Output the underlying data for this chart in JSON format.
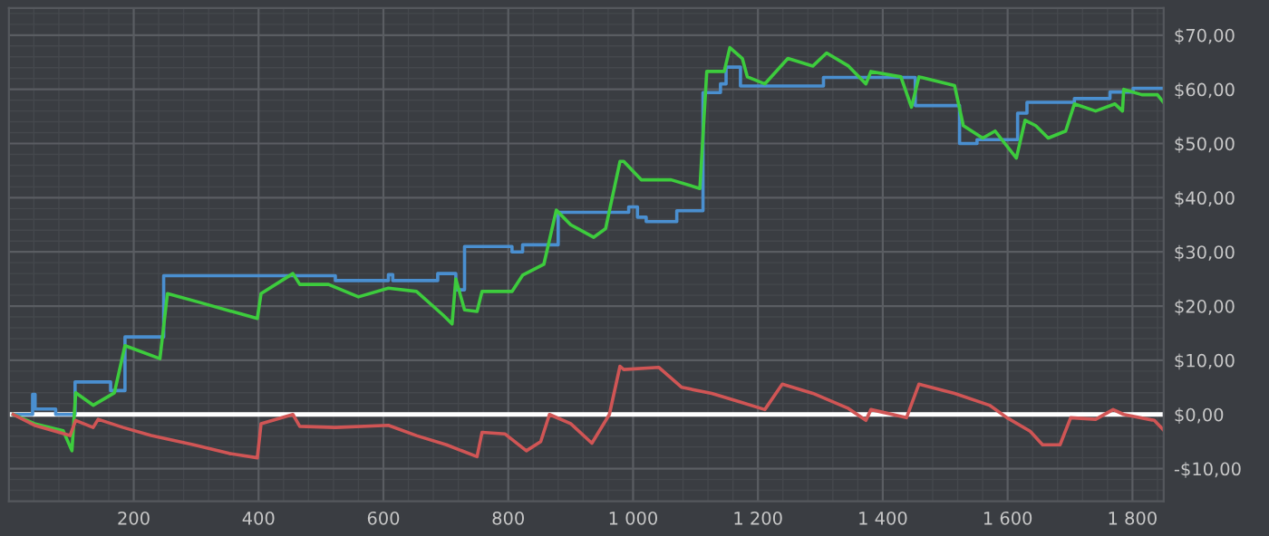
{
  "chart_data": {
    "type": "line",
    "xlim": [
      0,
      1850
    ],
    "ylim": [
      -16,
      75
    ],
    "xticks": [
      200,
      400,
      600,
      800,
      {
        "value": 1000,
        "label": "1 000"
      },
      {
        "value": 1200,
        "label": "1 200"
      },
      {
        "value": 1400,
        "label": "1 400"
      },
      {
        "value": 1600,
        "label": "1 600"
      },
      {
        "value": 1800,
        "label": "1 800"
      }
    ],
    "yticks": [
      {
        "value": -10,
        "label": "-$10,00"
      },
      {
        "value": 0,
        "label": "$0,00"
      },
      {
        "value": 10,
        "label": "$10,00"
      },
      {
        "value": 20,
        "label": "$20,00"
      },
      {
        "value": 30,
        "label": "$30,00"
      },
      {
        "value": 40,
        "label": "$40,00"
      },
      {
        "value": 50,
        "label": "$50,00"
      },
      {
        "value": 60,
        "label": "$60,00"
      },
      {
        "value": 70,
        "label": "$70,00"
      }
    ],
    "grid": true,
    "legend": false,
    "ref_lines": [
      {
        "axis": "y",
        "value": 0,
        "color": "#ffffff"
      }
    ],
    "series": [
      {
        "type": "step",
        "color": "#4a8fd0",
        "x": [
          7,
          38,
          42,
          75,
          106,
          163,
          186,
          248,
          523,
          608,
          615,
          687,
          716,
          730,
          806,
          823,
          880,
          993,
          1007,
          1021,
          1070,
          1112,
          1140,
          1149,
          1172,
          1305,
          1452,
          1523,
          1551,
          1616,
          1631,
          1707,
          1764,
          1801,
          1849
        ],
        "values": [
          0,
          3.7,
          1,
          0,
          6,
          4.4,
          14.3,
          25.6,
          24.7,
          25.8,
          24.7,
          26,
          23,
          31,
          30,
          31.3,
          37.3,
          38.3,
          36.4,
          35.6,
          37.6,
          59.4,
          61,
          64.1,
          60.6,
          62.2,
          57,
          50,
          50.7,
          55.6,
          57.6,
          58.3,
          59.5,
          60.2,
          60.2
        ]
      },
      {
        "color": "#3dcc3d",
        "x": [
          7,
          41,
          87,
          101,
          107,
          135,
          169,
          186,
          242,
          254,
          305,
          398,
          404,
          455,
          466,
          512,
          560,
          608,
          653,
          696,
          710,
          716,
          730,
          750,
          758,
          806,
          823,
          857,
          877,
          900,
          937,
          956,
          979,
          985,
          1013,
          1061,
          1107,
          1118,
          1146,
          1155,
          1175,
          1183,
          1211,
          1248,
          1288,
          1310,
          1345,
          1373,
          1381,
          1429,
          1446,
          1458,
          1515,
          1529,
          1560,
          1580,
          1614,
          1628,
          1645,
          1665,
          1693,
          1707,
          1741,
          1772,
          1784,
          1786,
          1815,
          1840,
          1849
        ],
        "values": [
          0,
          -1.7,
          -3,
          -6.7,
          4,
          1.7,
          4,
          12.7,
          10.3,
          22.3,
          20.7,
          17.7,
          22.3,
          26,
          24,
          24,
          21.7,
          23.3,
          22.7,
          18.3,
          16.7,
          25,
          19.3,
          19,
          22.7,
          22.7,
          25.7,
          27.7,
          37.7,
          35,
          32.7,
          34.3,
          46.7,
          46.7,
          43.3,
          43.3,
          41.7,
          63.3,
          63.3,
          67.7,
          65.7,
          62.3,
          61,
          65.7,
          64.3,
          66.7,
          64.3,
          61,
          63.3,
          62.3,
          56.7,
          62.3,
          60.7,
          53.3,
          51,
          52.3,
          47.3,
          54.3,
          53.3,
          51,
          52.3,
          57.3,
          56,
          57.3,
          56,
          60,
          59,
          59,
          57.7
        ]
      },
      {
        "color": "#d05555",
        "x": [
          7,
          41,
          98,
          107,
          135,
          143,
          183,
          228,
          296,
          353,
          398,
          404,
          455,
          466,
          523,
          608,
          653,
          701,
          750,
          758,
          795,
          829,
          852,
          866,
          900,
          934,
          962,
          979,
          985,
          1041,
          1078,
          1126,
          1174,
          1211,
          1239,
          1288,
          1345,
          1373,
          1381,
          1438,
          1458,
          1515,
          1571,
          1599,
          1636,
          1656,
          1684,
          1701,
          1741,
          1769,
          1786,
          1835,
          1849
        ],
        "values": [
          0,
          -2,
          -3.9,
          -1.1,
          -2.4,
          -0.9,
          -2.4,
          -3.9,
          -5.6,
          -7.2,
          -8,
          -1.7,
          0,
          -2.2,
          -2.4,
          -2,
          -3.9,
          -5.6,
          -7.8,
          -3.3,
          -3.6,
          -6.7,
          -5,
          0,
          -1.7,
          -5.3,
          0,
          8.9,
          8.3,
          8.7,
          5,
          3.9,
          2.2,
          0.9,
          5.6,
          3.9,
          1.1,
          -1.1,
          0.9,
          -0.6,
          5.6,
          3.9,
          1.7,
          -0.6,
          -3.1,
          -5.6,
          -5.6,
          -0.6,
          -0.9,
          0.9,
          0,
          -1.1,
          -2.8
        ]
      }
    ]
  }
}
